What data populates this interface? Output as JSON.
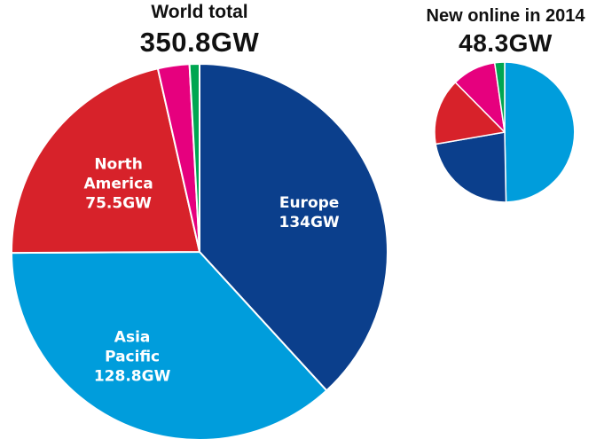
{
  "chart_data": [
    {
      "type": "pie",
      "title": "World total",
      "subtitle": "350.8GW",
      "slices": [
        {
          "name": "Europe",
          "value": 134,
          "value_label": "134GW",
          "color": "#0b3f8c"
        },
        {
          "name": "Asia Pacific",
          "value": 128.8,
          "value_label": "128.8GW",
          "color": "#009ddc"
        },
        {
          "name": "North America",
          "value": 75.5,
          "value_label": "75.5GW",
          "color": "#d7222a"
        },
        {
          "name": "",
          "value": 9.5,
          "value_label": "",
          "color": "#e6007e"
        },
        {
          "name": "",
          "value": 3.0,
          "value_label": "",
          "color": "#00a651"
        }
      ]
    },
    {
      "type": "pie",
      "title": "New online in 2014",
      "subtitle": "48.3GW",
      "slices": [
        {
          "name": "",
          "value": 24.0,
          "value_label": "",
          "color": "#009ddc"
        },
        {
          "name": "",
          "value": 10.9,
          "value_label": "",
          "color": "#0b3f8c"
        },
        {
          "name": "",
          "value": 7.4,
          "value_label": "",
          "color": "#d7222a"
        },
        {
          "name": "",
          "value": 4.9,
          "value_label": "",
          "color": "#e6007e"
        },
        {
          "name": "",
          "value": 1.1,
          "value_label": "",
          "color": "#00a651"
        }
      ]
    }
  ]
}
